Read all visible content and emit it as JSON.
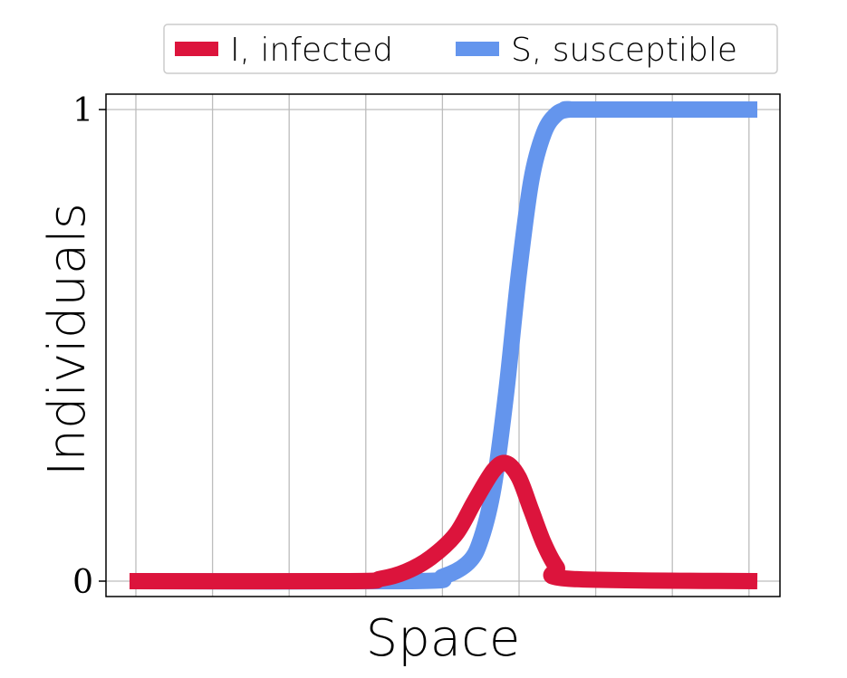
{
  "chart_data": {
    "type": "line",
    "xlabel": "Space",
    "ylabel": "Individuals",
    "ylim": [
      0,
      1
    ],
    "yticks": [
      0,
      1
    ],
    "yticklabels": [
      "0",
      "1"
    ],
    "x_gridlines": 9,
    "grid": true,
    "legend_position": "top-right, outside plot",
    "series": [
      {
        "name": "I, infected",
        "color": "#dc143c",
        "x": [
          0,
          0.35,
          0.4,
          0.44,
          0.48,
          0.52,
          0.55,
          0.58,
          0.6,
          0.62,
          0.64,
          0.66,
          0.68,
          0.7,
          1.0
        ],
        "y": [
          0,
          0.0,
          0.005,
          0.02,
          0.05,
          0.1,
          0.17,
          0.235,
          0.25,
          0.22,
          0.15,
          0.08,
          0.03,
          0.005,
          0
        ]
      },
      {
        "name": "S, susceptible",
        "color": "#6495ed",
        "x": [
          0,
          0.45,
          0.5,
          0.54,
          0.56,
          0.58,
          0.6,
          0.62,
          0.64,
          0.66,
          0.68,
          0.7,
          0.72,
          1.0
        ],
        "y": [
          0,
          0.0,
          0.01,
          0.04,
          0.09,
          0.2,
          0.4,
          0.65,
          0.85,
          0.95,
          0.99,
          1.0,
          1.0,
          1.0
        ]
      }
    ]
  }
}
